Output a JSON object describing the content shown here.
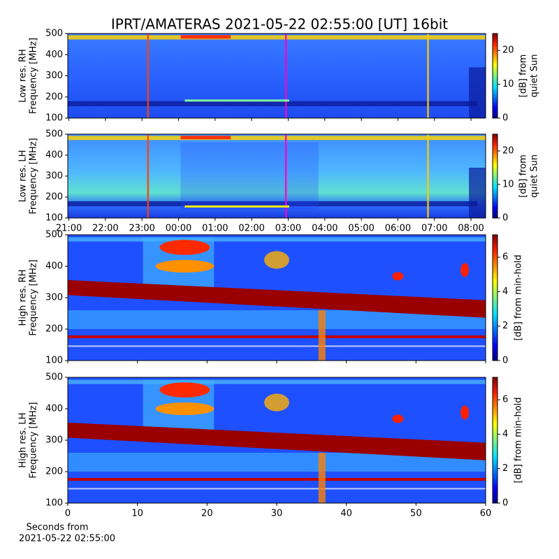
{
  "chart_data": [
    {
      "type": "heatmap",
      "title": "IPRT/AMATERAS 2021-05-22 02:55:00 [UT]   16bit",
      "ylabel": [
        "Low res. RH",
        "Frequency [MHz]"
      ],
      "ylim": [
        100,
        500
      ],
      "yticks": [
        100,
        200,
        300,
        400,
        500
      ],
      "xlim": [
        20.97,
        32.4
      ],
      "colorbar": {
        "label": [
          "[dB] from",
          "quiet Sun"
        ],
        "lim": [
          0,
          25
        ],
        "ticks": [
          0,
          10,
          20
        ]
      }
    },
    {
      "type": "heatmap",
      "ylabel": [
        "Low res. LH",
        "Frequency [MHz]"
      ],
      "ylim": [
        100,
        500
      ],
      "yticks": [
        100,
        200,
        300,
        400,
        500
      ],
      "xlim": [
        20.97,
        32.4
      ],
      "xticks": [
        {
          "value": 21,
          "label": "21:00"
        },
        {
          "value": 22,
          "label": "22:00"
        },
        {
          "value": 23,
          "label": "23:00"
        },
        {
          "value": 24,
          "label": "00:00"
        },
        {
          "value": 25,
          "label": "01:00"
        },
        {
          "value": 26,
          "label": "02:00"
        },
        {
          "value": 27,
          "label": "03:00"
        },
        {
          "value": 28,
          "label": "04:00"
        },
        {
          "value": 29,
          "label": "05:00"
        },
        {
          "value": 30,
          "label": "06:00"
        },
        {
          "value": 31,
          "label": "07:00"
        },
        {
          "value": 32,
          "label": "08:00"
        }
      ],
      "colorbar": {
        "label": [
          "[dB] from",
          "quiet Sun"
        ],
        "lim": [
          0,
          25
        ],
        "ticks": [
          0,
          10,
          20
        ]
      }
    },
    {
      "type": "heatmap",
      "ylabel": [
        "High res. RH",
        "Frequency [MHz]"
      ],
      "ylim": [
        100,
        500
      ],
      "yticks": [
        100,
        200,
        300,
        400,
        500
      ],
      "xlim": [
        0,
        60
      ],
      "colorbar": {
        "label": [
          "[dB] from min-hold"
        ],
        "lim": [
          0,
          7.3
        ],
        "ticks": [
          0,
          2,
          4,
          6
        ]
      }
    },
    {
      "type": "heatmap",
      "ylabel": [
        "High res. LH",
        "Frequency [MHz]"
      ],
      "ylim": [
        100,
        500
      ],
      "yticks": [
        100,
        200,
        300,
        400,
        500
      ],
      "xlim": [
        0,
        60
      ],
      "xticks": [
        0,
        10,
        20,
        30,
        40,
        50,
        60
      ],
      "xlabel": [
        "Seconds from",
        "2021-05-22 02:55:00"
      ],
      "colorbar": {
        "label": [
          "[dB] from min-hold"
        ],
        "lim": [
          0,
          7.3
        ],
        "ticks": [
          0,
          2,
          4,
          6
        ]
      }
    }
  ]
}
